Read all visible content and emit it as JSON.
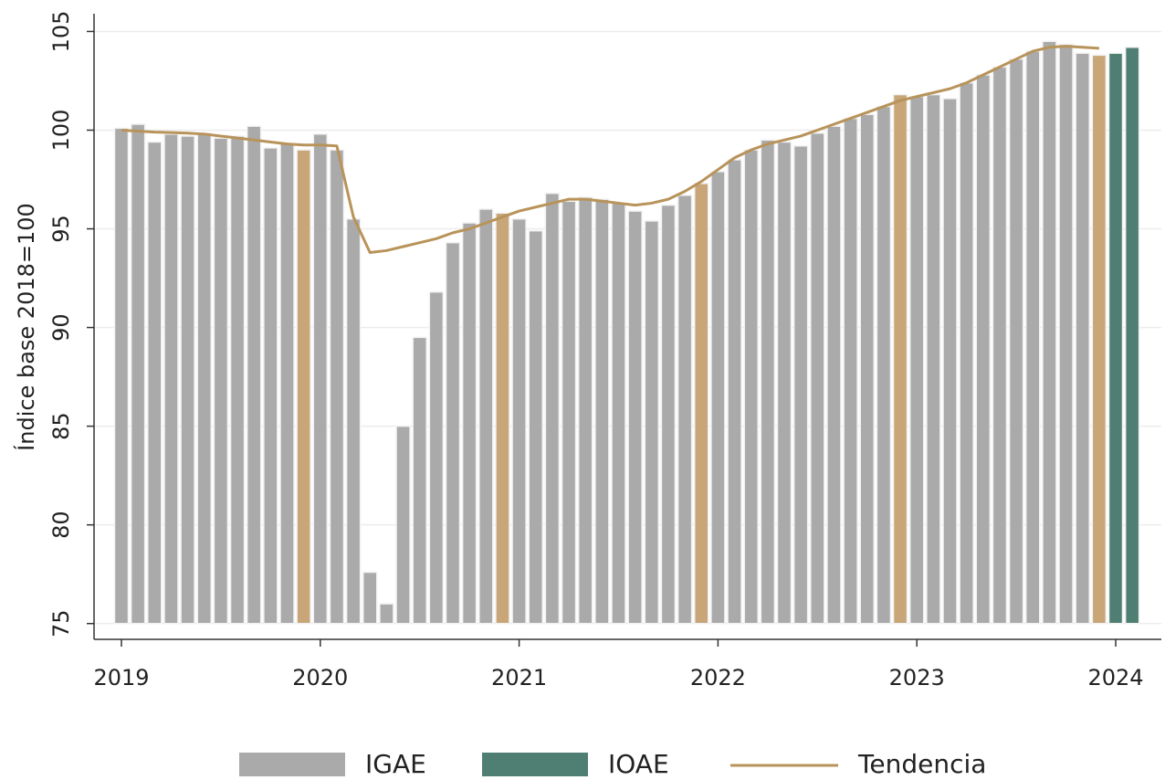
{
  "chart_data": {
    "type": "bar",
    "ylabel": "Índice base 2018=100",
    "categories": [
      "2019",
      null,
      null,
      null,
      null,
      null,
      null,
      null,
      null,
      null,
      null,
      null,
      "2020",
      null,
      null,
      null,
      null,
      null,
      null,
      null,
      null,
      null,
      null,
      null,
      "2021",
      null,
      null,
      null,
      null,
      null,
      null,
      null,
      null,
      null,
      null,
      null,
      "2022",
      null,
      null,
      null,
      null,
      null,
      null,
      null,
      null,
      null,
      null,
      null,
      "2023",
      null,
      null,
      null,
      null,
      null,
      null,
      null,
      null,
      null,
      null,
      null,
      "2024",
      null
    ],
    "series": [
      {
        "name": "IGAE",
        "type": "bar",
        "color": "#aaaaaa",
        "values": [
          100.1,
          100.3,
          99.4,
          99.8,
          99.7,
          99.85,
          99.6,
          99.7,
          100.2,
          99.1,
          99.3,
          99.0,
          99.8,
          99.0,
          95.5,
          77.6,
          76.0,
          85.0,
          89.5,
          91.8,
          94.3,
          95.3,
          96.0,
          95.8,
          95.5,
          94.9,
          96.8,
          96.4,
          96.6,
          96.5,
          96.3,
          95.9,
          95.4,
          96.2,
          96.7,
          97.3,
          97.9,
          98.5,
          99.0,
          99.5,
          99.4,
          99.2,
          99.85,
          100.2,
          100.6,
          100.8,
          101.2,
          101.8,
          101.7,
          101.8,
          101.6,
          102.4,
          102.8,
          103.2,
          103.6,
          104.0,
          104.5,
          104.35,
          103.9,
          103.8,
          null,
          null
        ],
        "colors": [
          "#aaaaaa",
          "#aaaaaa",
          "#aaaaaa",
          "#aaaaaa",
          "#aaaaaa",
          "#aaaaaa",
          "#aaaaaa",
          "#aaaaaa",
          "#aaaaaa",
          "#aaaaaa",
          "#aaaaaa",
          "#c8a678",
          "#aaaaaa",
          "#aaaaaa",
          "#aaaaaa",
          "#aaaaaa",
          "#aaaaaa",
          "#aaaaaa",
          "#aaaaaa",
          "#aaaaaa",
          "#aaaaaa",
          "#aaaaaa",
          "#aaaaaa",
          "#c8a678",
          "#aaaaaa",
          "#aaaaaa",
          "#aaaaaa",
          "#aaaaaa",
          "#aaaaaa",
          "#aaaaaa",
          "#aaaaaa",
          "#aaaaaa",
          "#aaaaaa",
          "#aaaaaa",
          "#aaaaaa",
          "#c8a678",
          "#aaaaaa",
          "#aaaaaa",
          "#aaaaaa",
          "#aaaaaa",
          "#aaaaaa",
          "#aaaaaa",
          "#aaaaaa",
          "#aaaaaa",
          "#aaaaaa",
          "#aaaaaa",
          "#aaaaaa",
          "#c8a678",
          "#aaaaaa",
          "#aaaaaa",
          "#aaaaaa",
          "#aaaaaa",
          "#aaaaaa",
          "#aaaaaa",
          "#aaaaaa",
          "#aaaaaa",
          "#aaaaaa",
          "#aaaaaa",
          "#aaaaaa",
          "#c8a678",
          null,
          null
        ]
      },
      {
        "name": "IOAE",
        "type": "bar",
        "color": "#4e7f72",
        "values": [
          null,
          null,
          null,
          null,
          null,
          null,
          null,
          null,
          null,
          null,
          null,
          null,
          null,
          null,
          null,
          null,
          null,
          null,
          null,
          null,
          null,
          null,
          null,
          null,
          null,
          null,
          null,
          null,
          null,
          null,
          null,
          null,
          null,
          null,
          null,
          null,
          null,
          null,
          null,
          null,
          null,
          null,
          null,
          null,
          null,
          null,
          null,
          null,
          null,
          null,
          null,
          null,
          null,
          null,
          null,
          null,
          null,
          null,
          null,
          null,
          103.9,
          104.2
        ]
      },
      {
        "name": "Tendencia",
        "type": "line",
        "color": "#b8935a",
        "values": [
          100.0,
          99.95,
          99.9,
          99.88,
          99.85,
          99.8,
          99.7,
          99.6,
          99.5,
          99.4,
          99.3,
          99.25,
          99.25,
          99.2,
          95.6,
          93.8,
          93.9,
          94.1,
          94.3,
          94.5,
          94.8,
          95.0,
          95.3,
          95.6,
          95.9,
          96.1,
          96.3,
          96.5,
          96.5,
          96.4,
          96.3,
          96.2,
          96.3,
          96.5,
          96.9,
          97.4,
          98.0,
          98.6,
          99.0,
          99.3,
          99.5,
          99.7,
          100.0,
          100.3,
          100.6,
          100.9,
          101.2,
          101.5,
          101.7,
          101.9,
          102.1,
          102.4,
          102.8,
          103.2,
          103.6,
          104.0,
          104.2,
          104.25,
          104.2,
          104.15,
          null,
          null
        ]
      }
    ],
    "ylim": [
      74.2,
      105.9
    ],
    "yticks": [
      75,
      80,
      85,
      90,
      95,
      100,
      105
    ],
    "grid": true,
    "legend": "bottom"
  }
}
